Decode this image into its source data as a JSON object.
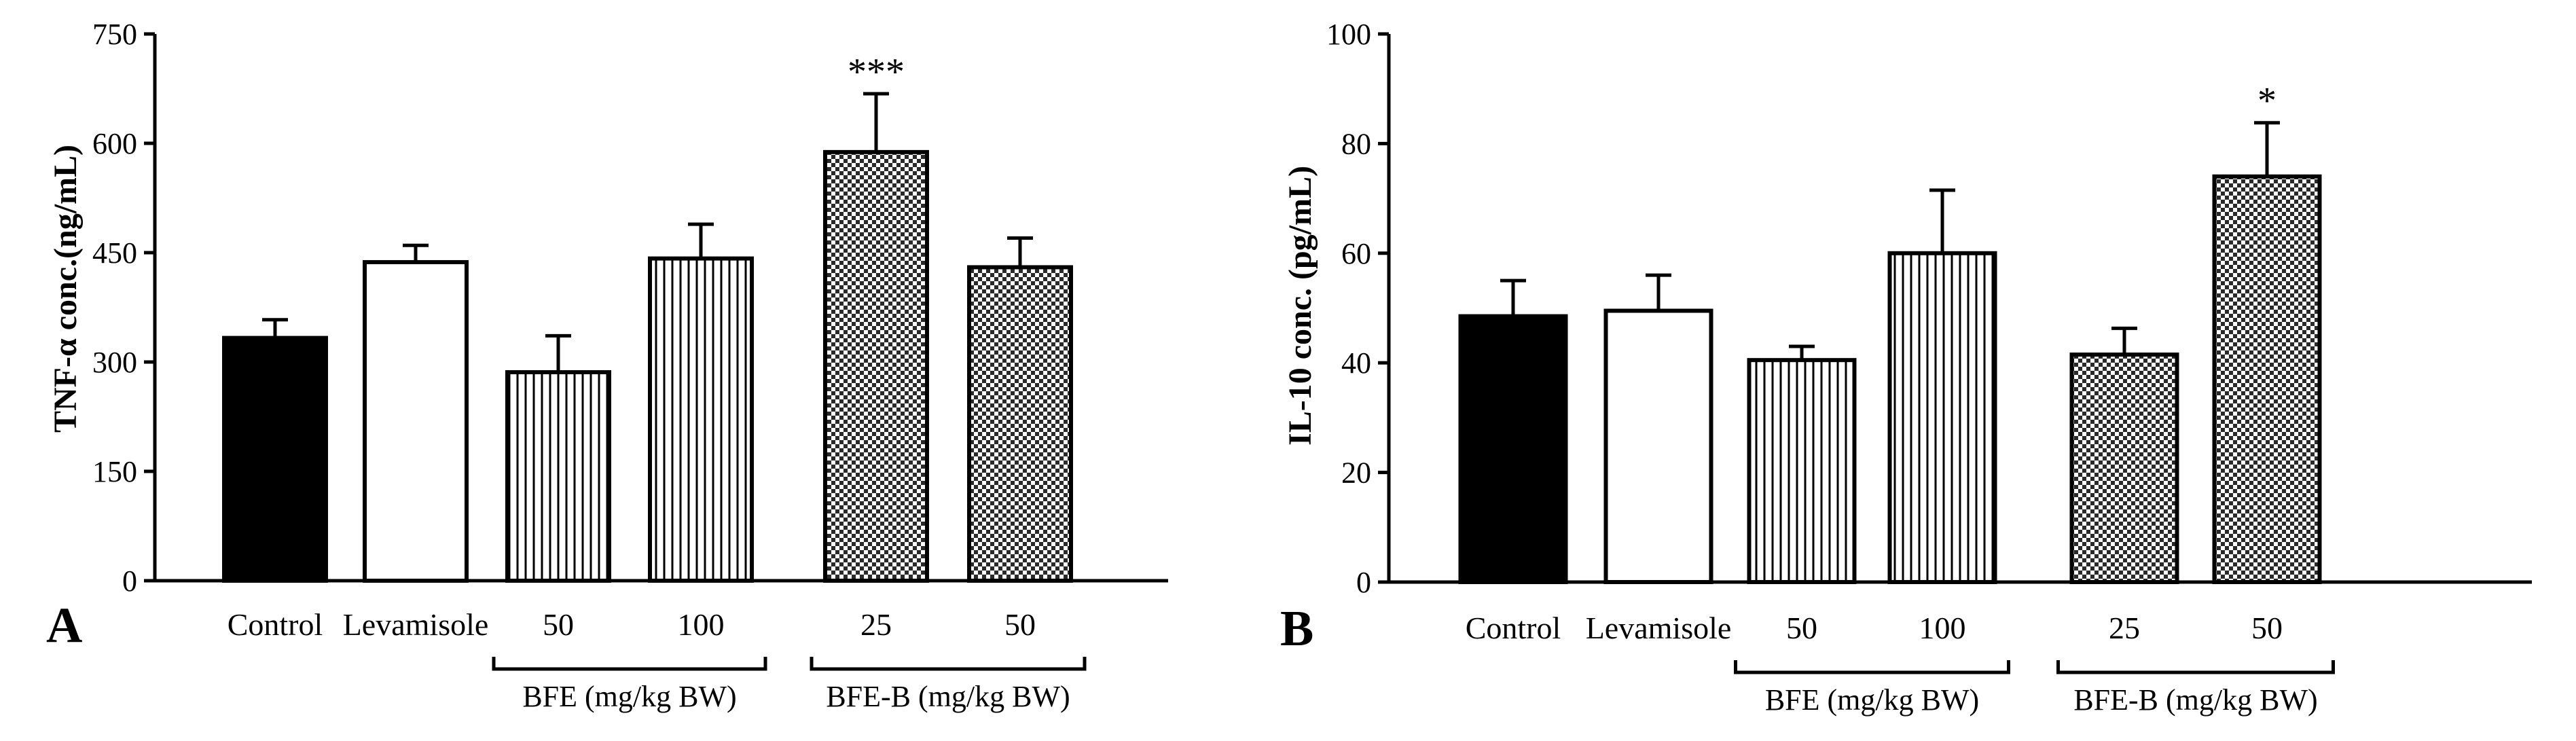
{
  "colors": {
    "axis": "#000000",
    "bar_stroke": "#000000",
    "control_fill": "#000000",
    "levamisole_fill": "#ffffff"
  },
  "chart_data": [
    {
      "type": "bar",
      "panel_label": "A",
      "ylabel": "TNF-α conc.(ng/mL)",
      "ylim": [
        0,
        750
      ],
      "yticks": [
        0,
        150,
        300,
        450,
        600,
        750
      ],
      "categories": [
        "Control",
        "Levamisole",
        "50",
        "100",
        "25",
        "50"
      ],
      "values": [
        333,
        437,
        286,
        442,
        588,
        430
      ],
      "errors": [
        25,
        23,
        50,
        47,
        80,
        40
      ],
      "patterns": [
        "solid",
        "white",
        "vertical",
        "vertical",
        "checker",
        "checker"
      ],
      "significance": [
        "",
        "",
        "",
        "",
        "***",
        ""
      ],
      "groups": [
        {
          "label": "BFE (mg/kg BW)",
          "bars": [
            2,
            3
          ]
        },
        {
          "label": "BFE-B (mg/kg BW)",
          "bars": [
            4,
            5
          ]
        }
      ]
    },
    {
      "type": "bar",
      "panel_label": "B",
      "ylabel": "IL-10 conc. (pg/mL)",
      "ylim": [
        0,
        100
      ],
      "yticks": [
        0,
        20,
        40,
        60,
        80,
        100
      ],
      "categories": [
        "Control",
        "Levamisole",
        "50",
        "100",
        "25",
        "50"
      ],
      "values": [
        48.5,
        49.5,
        40.5,
        60,
        41.5,
        74
      ],
      "errors": [
        6.5,
        6.5,
        2.5,
        11.5,
        4.8,
        9.8
      ],
      "patterns": [
        "solid",
        "white",
        "vertical",
        "vertical",
        "checker",
        "checker"
      ],
      "significance": [
        "",
        "",
        "",
        "",
        "",
        "*"
      ],
      "groups": [
        {
          "label": "BFE (mg/kg BW)",
          "bars": [
            2,
            3
          ]
        },
        {
          "label": "BFE-B (mg/kg BW)",
          "bars": [
            4,
            5
          ]
        }
      ]
    }
  ]
}
